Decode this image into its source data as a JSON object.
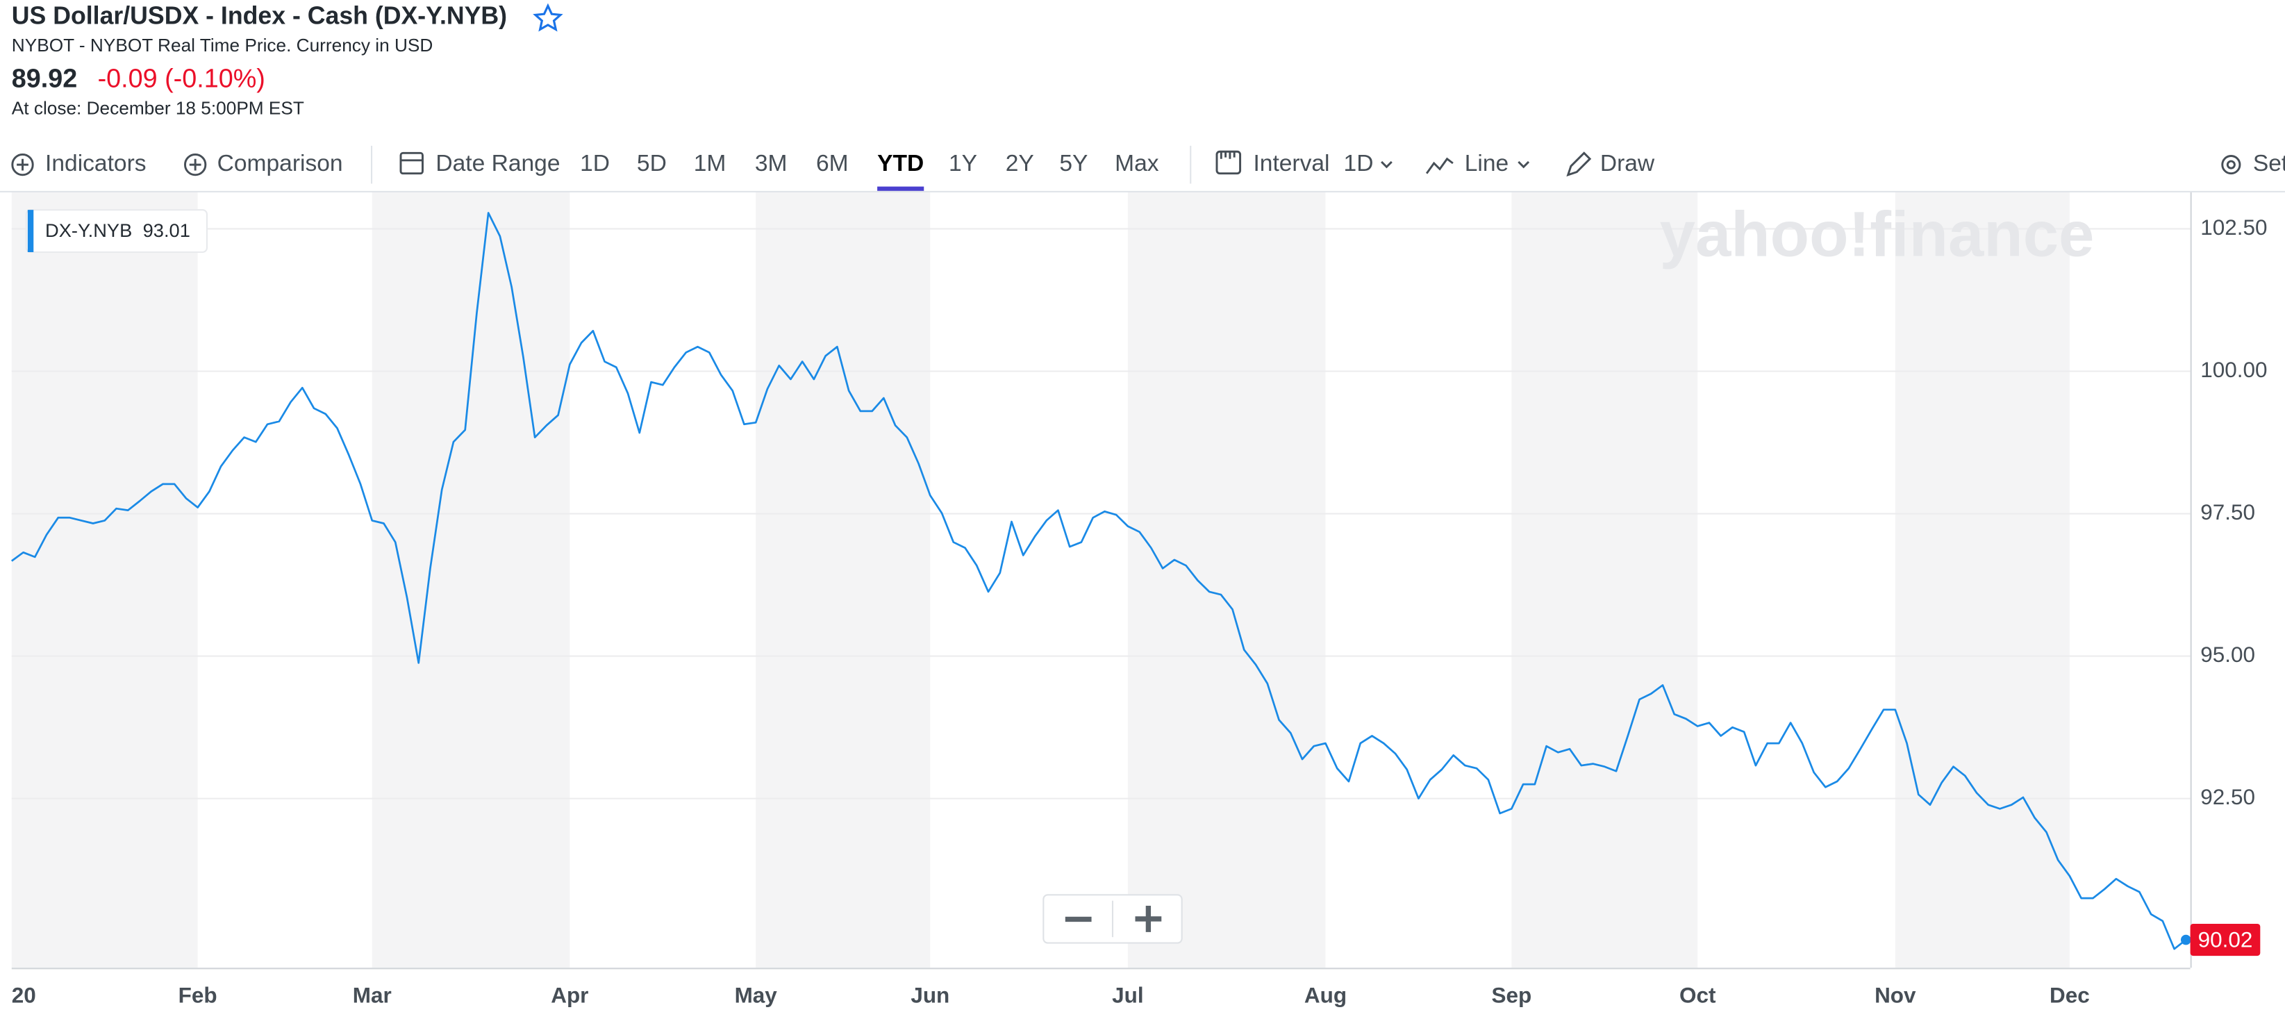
{
  "header": {
    "title": "US Dollar/USDX - Index - Cash (DX-Y.NYB)",
    "subtitle": "NYBOT - NYBOT Real Time Price. Currency in USD",
    "price": 89.92,
    "change": "-0.09 (-0.10%)",
    "close_time": "At close: December 18 5:00PM EST"
  },
  "toolbar": {
    "indicators": "Indicators",
    "comparison": "Comparison",
    "date_range": "Date Range",
    "ranges": [
      "1D",
      "5D",
      "1M",
      "3M",
      "6M",
      "YTD",
      "1Y",
      "2Y",
      "5Y",
      "Max"
    ],
    "interval": "Interval",
    "interval_value": "1D",
    "line": "Line",
    "draw": "Draw",
    "settings": "Set"
  },
  "legend_price": 93.01,
  "watermark": "yahoo!finance",
  "chart_data": {
    "type": "line",
    "categories": [
      "20",
      null,
      null,
      null,
      null,
      null,
      null,
      null,
      null,
      null,
      null,
      null,
      null,
      null,
      null,
      null,
      "Feb",
      null,
      null,
      null,
      null,
      null,
      null,
      null,
      null,
      null,
      null,
      null,
      null,
      null,
      null,
      "Mar",
      null,
      null,
      null,
      null,
      null,
      null,
      null,
      null,
      null,
      null,
      null,
      null,
      null,
      null,
      null,
      null,
      "Apr",
      null,
      null,
      null,
      null,
      null,
      null,
      null,
      null,
      null,
      null,
      null,
      null,
      null,
      null,
      null,
      "May",
      null,
      null,
      null,
      null,
      null,
      null,
      null,
      null,
      null,
      null,
      null,
      null,
      null,
      null,
      "Jun",
      null,
      null,
      null,
      null,
      null,
      null,
      null,
      null,
      null,
      null,
      null,
      null,
      null,
      null,
      null,
      null,
      "Jul",
      null,
      null,
      null,
      null,
      null,
      null,
      null,
      null,
      null,
      null,
      null,
      null,
      null,
      null,
      null,
      null,
      "Aug",
      null,
      null,
      null,
      null,
      null,
      null,
      null,
      null,
      null,
      null,
      null,
      null,
      null,
      null,
      null,
      "Sep",
      null,
      null,
      null,
      null,
      null,
      null,
      null,
      null,
      null,
      null,
      null,
      null,
      null,
      null,
      null,
      "Oct",
      null,
      null,
      null,
      null,
      null,
      null,
      null,
      null,
      null,
      null,
      null,
      null,
      null,
      null,
      null,
      null,
      "Nov",
      null,
      null,
      null,
      null,
      null,
      null,
      null,
      null,
      null,
      null,
      null,
      null,
      null,
      null,
      "Dec",
      null,
      null,
      null,
      null,
      null,
      null,
      null,
      null,
      null,
      null
    ],
    "series": [
      {
        "name": "DX-Y.NYB",
        "color": "#1a8ae6",
        "values": [
          96.67,
          96.82,
          96.74,
          97.13,
          97.43,
          97.43,
          97.38,
          97.33,
          97.38,
          97.59,
          97.56,
          97.72,
          97.89,
          98.02,
          98.02,
          97.77,
          97.61,
          97.89,
          98.33,
          98.61,
          98.84,
          98.76,
          99.07,
          99.12,
          99.46,
          99.71,
          99.35,
          99.25,
          99.0,
          98.53,
          98.02,
          97.38,
          97.33,
          97.0,
          96.03,
          94.88,
          96.54,
          97.92,
          98.76,
          98.97,
          101.02,
          102.78,
          102.37,
          101.48,
          100.25,
          98.84,
          99.05,
          99.23,
          100.12,
          100.5,
          100.71,
          100.17,
          100.07,
          99.61,
          98.92,
          99.81,
          99.76,
          100.07,
          100.33,
          100.43,
          100.33,
          99.94,
          99.66,
          99.07,
          99.1,
          99.69,
          100.1,
          99.86,
          100.17,
          99.86,
          100.27,
          100.43,
          99.66,
          99.3,
          99.3,
          99.53,
          99.05,
          98.84,
          98.38,
          97.82,
          97.51,
          97.0,
          96.9,
          96.59,
          96.13,
          96.46,
          97.36,
          96.77,
          97.1,
          97.38,
          97.56,
          96.92,
          97.0,
          97.43,
          97.54,
          97.48,
          97.28,
          97.18,
          96.9,
          96.54,
          96.69,
          96.59,
          96.33,
          96.13,
          96.08,
          95.82,
          95.11,
          94.85,
          94.52,
          93.88,
          93.65,
          93.19,
          93.42,
          93.47,
          93.03,
          92.8,
          93.47,
          93.6,
          93.47,
          93.29,
          93.01,
          92.5,
          92.83,
          93.01,
          93.26,
          93.08,
          93.03,
          92.83,
          92.24,
          92.32,
          92.75,
          92.75,
          93.42,
          93.31,
          93.37,
          93.08,
          93.11,
          93.06,
          92.98,
          93.6,
          94.24,
          94.34,
          94.49,
          93.98,
          93.9,
          93.77,
          93.83,
          93.6,
          93.75,
          93.67,
          93.08,
          93.47,
          93.47,
          93.83,
          93.47,
          92.96,
          92.7,
          92.8,
          93.03,
          93.37,
          93.72,
          94.06,
          94.06,
          93.47,
          92.57,
          92.39,
          92.78,
          93.06,
          92.9,
          92.6,
          92.39,
          92.32,
          92.39,
          92.52,
          92.16,
          91.91,
          91.42,
          91.14,
          90.75,
          90.75,
          90.91,
          91.09,
          90.96,
          90.86,
          90.47,
          90.35,
          89.86,
          90.02
        ]
      }
    ],
    "ylim": [
      89.53,
      103.14
    ],
    "yticks": [
      {
        "value": 92.5,
        "label": "92.50"
      },
      {
        "value": 95,
        "label": "95.00"
      },
      {
        "value": 97.5,
        "label": "97.50"
      },
      {
        "value": 100,
        "label": "100.00"
      },
      {
        "value": 102.5,
        "label": "102.50"
      }
    ],
    "grid": true,
    "shade_alternate_months": true
  }
}
